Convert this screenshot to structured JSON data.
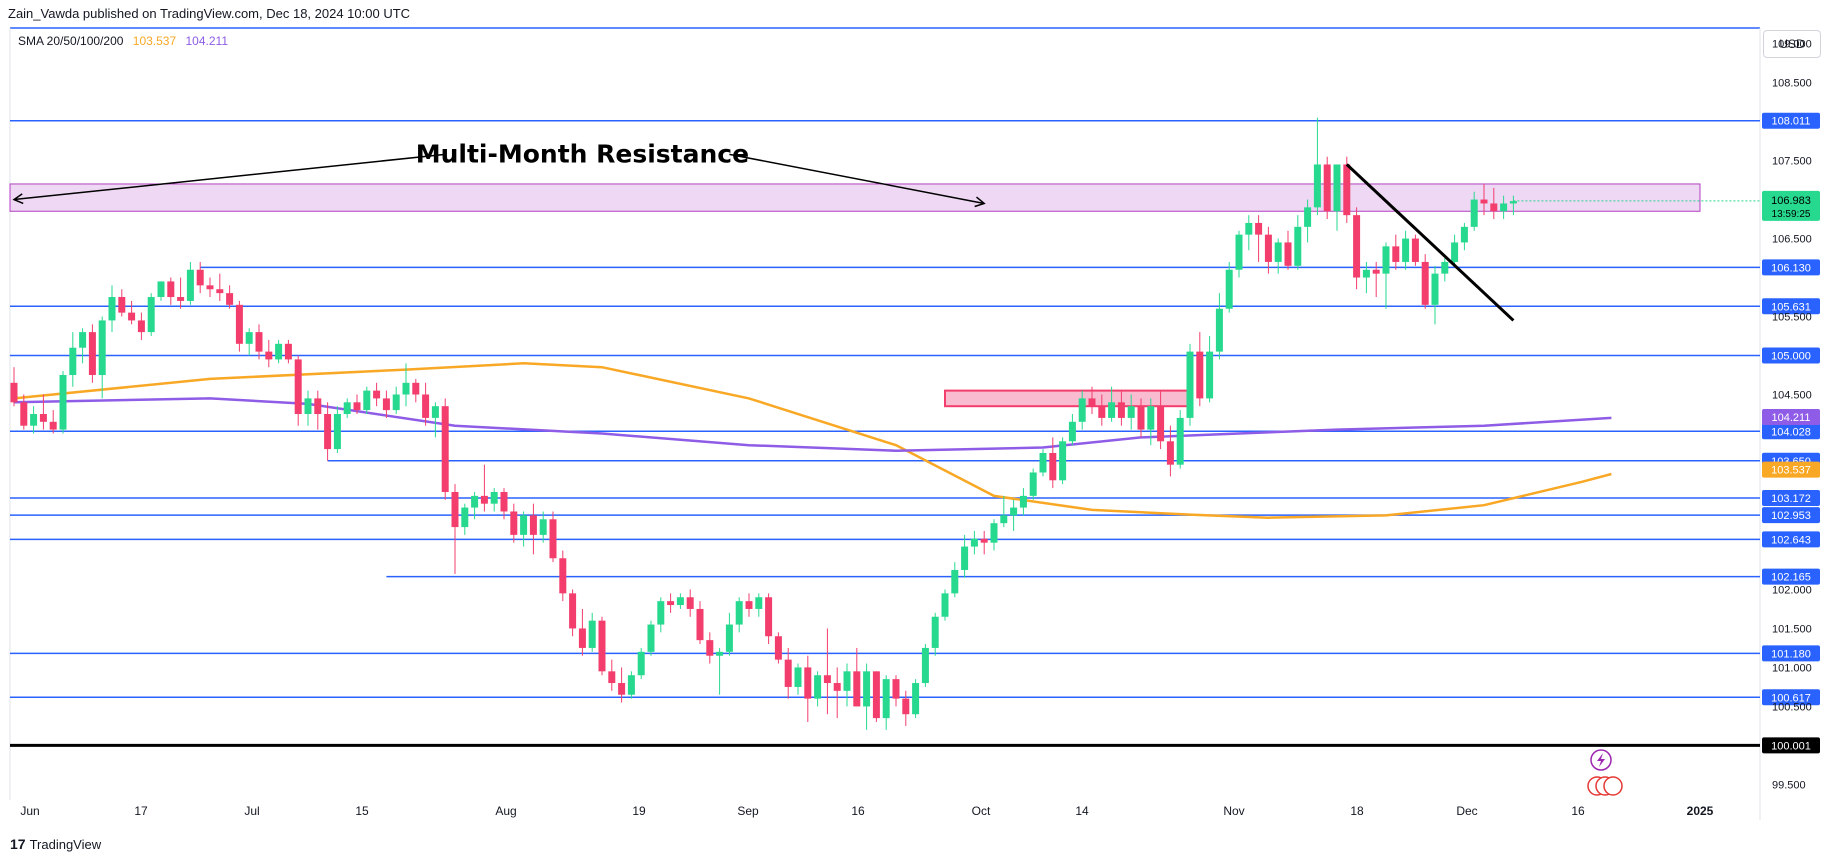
{
  "header": {
    "publisher": "Zain_Vawda published on TradingView.com, Dec 18, 2024 10:00 UTC"
  },
  "legend": {
    "label": "SMA 20/50/100/200",
    "sma1_value": "103.537",
    "sma2_value": "104.211"
  },
  "currency_label": "USD",
  "footer": {
    "brand": "TradingView"
  },
  "colors": {
    "up": "#26d98f",
    "down": "#f23d6d",
    "level": "#2962ff",
    "sma1": "#f9a825",
    "sma2": "#8e5ce6",
    "zone": "#e8c8f0",
    "zone_border": "#b040c0"
  },
  "chart_data": {
    "type": "candlestick",
    "annotation": "Multi-Month Resistance",
    "y_axis_ticks": [
      "109.000",
      "108.500",
      "107.500",
      "106.500",
      "105.500",
      "104.500",
      "102.000",
      "101.500",
      "101.000",
      "100.500",
      "99.500"
    ],
    "x_axis_ticks": [
      "Jun",
      "17",
      "Jul",
      "15",
      "Aug",
      "19",
      "Sep",
      "16",
      "Oct",
      "14",
      "Nov",
      "18",
      "Dec",
      "16",
      "2025"
    ],
    "ylim": [
      99.3,
      109.2
    ],
    "levels": [
      {
        "value": 108.011,
        "label": "108.011"
      },
      {
        "value": 106.13,
        "label": "106.130"
      },
      {
        "value": 105.631,
        "label": "105.631"
      },
      {
        "value": 105.0,
        "label": "105.000"
      },
      {
        "value": 104.028,
        "label": "104.028"
      },
      {
        "value": 103.65,
        "label": "103.650"
      },
      {
        "value": 103.172,
        "label": "103.172"
      },
      {
        "value": 102.953,
        "label": "102.953"
      },
      {
        "value": 102.643,
        "label": "102.643"
      },
      {
        "value": 102.165,
        "label": "102.165"
      },
      {
        "value": 101.18,
        "label": "101.180"
      },
      {
        "value": 100.617,
        "label": "100.617"
      },
      {
        "value": 100.001,
        "label": "100.001"
      }
    ],
    "sma_labels": [
      {
        "value": 104.211,
        "label": "104.211",
        "series": "sma2"
      },
      {
        "value": 103.537,
        "label": "103.537",
        "series": "sma1"
      }
    ],
    "last_price": {
      "value": 106.983,
      "label": "106.983",
      "countdown": "13:59:25"
    },
    "resistance_zone": [
      106.85,
      107.2
    ],
    "demand_zone": [
      104.35,
      104.55
    ],
    "candles": [
      [
        104.65,
        104.85,
        104.35,
        104.4
      ],
      [
        104.4,
        104.5,
        104.05,
        104.1
      ],
      [
        104.1,
        104.35,
        104.0,
        104.25
      ],
      [
        104.25,
        104.5,
        104.05,
        104.15
      ],
      [
        104.15,
        104.3,
        104.0,
        104.05
      ],
      [
        104.05,
        104.8,
        104.0,
        104.75
      ],
      [
        104.75,
        105.3,
        104.6,
        105.1
      ],
      [
        105.1,
        105.35,
        104.9,
        105.3
      ],
      [
        105.3,
        105.4,
        104.65,
        104.75
      ],
      [
        104.75,
        105.5,
        104.45,
        105.45
      ],
      [
        105.45,
        105.9,
        105.3,
        105.75
      ],
      [
        105.75,
        105.85,
        105.5,
        105.55
      ],
      [
        105.55,
        105.7,
        105.4,
        105.45
      ],
      [
        105.45,
        105.55,
        105.2,
        105.3
      ],
      [
        105.3,
        105.8,
        105.25,
        105.75
      ],
      [
        105.75,
        105.95,
        105.7,
        105.95
      ],
      [
        105.95,
        106.0,
        105.65,
        105.75
      ],
      [
        105.75,
        106.0,
        105.6,
        105.7
      ],
      [
        105.7,
        106.2,
        105.65,
        106.1
      ],
      [
        106.1,
        106.2,
        105.8,
        105.9
      ],
      [
        105.9,
        106.0,
        105.75,
        105.85
      ],
      [
        105.85,
        106.05,
        105.7,
        105.8
      ],
      [
        105.8,
        105.9,
        105.6,
        105.65
      ],
      [
        105.65,
        105.7,
        105.05,
        105.15
      ],
      [
        105.15,
        105.35,
        105.0,
        105.3
      ],
      [
        105.3,
        105.4,
        104.95,
        105.05
      ],
      [
        105.05,
        105.2,
        104.85,
        104.95
      ],
      [
        104.95,
        105.2,
        104.9,
        105.15
      ],
      [
        105.15,
        105.2,
        104.9,
        104.95
      ],
      [
        104.95,
        105.0,
        104.1,
        104.25
      ],
      [
        104.25,
        104.55,
        104.1,
        104.45
      ],
      [
        104.45,
        104.55,
        104.05,
        104.25
      ],
      [
        104.25,
        104.4,
        103.65,
        103.8
      ],
      [
        103.8,
        104.35,
        103.75,
        104.25
      ],
      [
        104.25,
        104.45,
        104.2,
        104.4
      ],
      [
        104.4,
        104.5,
        104.25,
        104.3
      ],
      [
        104.3,
        104.6,
        104.25,
        104.55
      ],
      [
        104.55,
        104.65,
        104.35,
        104.45
      ],
      [
        104.45,
        104.55,
        104.2,
        104.3
      ],
      [
        104.3,
        104.6,
        104.25,
        104.5
      ],
      [
        104.5,
        104.9,
        104.35,
        104.65
      ],
      [
        104.65,
        104.7,
        104.4,
        104.5
      ],
      [
        104.5,
        104.65,
        104.1,
        104.2
      ],
      [
        104.2,
        104.4,
        103.95,
        104.35
      ],
      [
        104.35,
        104.45,
        103.15,
        103.25
      ],
      [
        103.25,
        103.35,
        102.2,
        102.8
      ],
      [
        102.8,
        103.1,
        102.7,
        103.05
      ],
      [
        103.05,
        103.25,
        102.9,
        103.2
      ],
      [
        103.2,
        103.6,
        103.0,
        103.1
      ],
      [
        103.1,
        103.3,
        103.0,
        103.25
      ],
      [
        103.25,
        103.3,
        102.9,
        103.0
      ],
      [
        103.0,
        103.1,
        102.6,
        102.7
      ],
      [
        102.7,
        103.0,
        102.55,
        102.95
      ],
      [
        102.95,
        103.1,
        102.45,
        102.7
      ],
      [
        102.7,
        103.0,
        102.6,
        102.9
      ],
      [
        102.9,
        103.0,
        102.35,
        102.4
      ],
      [
        102.4,
        102.5,
        101.85,
        101.95
      ],
      [
        101.95,
        102.0,
        101.4,
        101.5
      ],
      [
        101.5,
        101.75,
        101.15,
        101.25
      ],
      [
        101.25,
        101.7,
        101.2,
        101.6
      ],
      [
        101.6,
        101.65,
        100.9,
        100.95
      ],
      [
        100.95,
        101.1,
        100.7,
        100.8
      ],
      [
        100.8,
        101.0,
        100.55,
        100.65
      ],
      [
        100.65,
        100.95,
        100.6,
        100.9
      ],
      [
        100.9,
        101.25,
        100.85,
        101.2
      ],
      [
        101.2,
        101.6,
        101.15,
        101.55
      ],
      [
        101.55,
        101.9,
        101.45,
        101.85
      ],
      [
        101.85,
        101.95,
        101.7,
        101.8
      ],
      [
        101.8,
        101.95,
        101.75,
        101.9
      ],
      [
        101.9,
        102.0,
        101.65,
        101.75
      ],
      [
        101.75,
        101.85,
        101.3,
        101.35
      ],
      [
        101.35,
        101.45,
        101.05,
        101.15
      ],
      [
        101.15,
        101.25,
        100.65,
        101.2
      ],
      [
        101.2,
        101.7,
        101.15,
        101.55
      ],
      [
        101.55,
        101.9,
        101.45,
        101.85
      ],
      [
        101.85,
        101.95,
        101.65,
        101.75
      ],
      [
        101.75,
        101.95,
        101.65,
        101.9
      ],
      [
        101.9,
        101.95,
        101.3,
        101.4
      ],
      [
        101.4,
        101.45,
        101.05,
        101.1
      ],
      [
        101.1,
        101.25,
        100.6,
        100.75
      ],
      [
        100.75,
        101.05,
        100.65,
        101.0
      ],
      [
        101.0,
        101.15,
        100.3,
        100.6
      ],
      [
        100.6,
        100.95,
        100.5,
        100.9
      ],
      [
        100.9,
        101.5,
        100.4,
        100.8
      ],
      [
        100.8,
        101.0,
        100.35,
        100.7
      ],
      [
        100.7,
        101.05,
        100.5,
        100.95
      ],
      [
        100.95,
        101.25,
        100.55,
        100.5
      ],
      [
        100.5,
        101.05,
        100.2,
        100.95
      ],
      [
        100.95,
        100.95,
        100.3,
        100.35
      ],
      [
        100.35,
        100.9,
        100.2,
        100.85
      ],
      [
        100.85,
        100.9,
        100.5,
        100.6
      ],
      [
        100.6,
        100.7,
        100.25,
        100.4
      ],
      [
        100.4,
        100.85,
        100.35,
        100.8
      ],
      [
        100.8,
        101.3,
        100.75,
        101.25
      ],
      [
        101.25,
        101.7,
        101.15,
        101.65
      ],
      [
        101.65,
        102.0,
        101.6,
        101.95
      ],
      [
        101.95,
        102.35,
        101.9,
        102.25
      ],
      [
        102.25,
        102.7,
        102.15,
        102.55
      ],
      [
        102.55,
        102.75,
        102.45,
        102.65
      ],
      [
        102.65,
        102.75,
        102.45,
        102.6
      ],
      [
        102.6,
        102.9,
        102.5,
        102.85
      ],
      [
        102.85,
        103.2,
        102.8,
        102.95
      ],
      [
        102.95,
        103.15,
        102.75,
        103.05
      ],
      [
        103.05,
        103.3,
        102.95,
        103.2
      ],
      [
        103.2,
        103.55,
        103.15,
        103.5
      ],
      [
        103.5,
        103.8,
        103.45,
        103.75
      ],
      [
        103.75,
        103.95,
        103.3,
        103.4
      ],
      [
        103.4,
        103.95,
        103.35,
        103.9
      ],
      [
        103.9,
        104.25,
        103.85,
        104.15
      ],
      [
        104.15,
        104.55,
        104.05,
        104.45
      ],
      [
        104.45,
        104.6,
        104.25,
        104.35
      ],
      [
        104.35,
        104.5,
        104.1,
        104.2
      ],
      [
        104.2,
        104.6,
        104.15,
        104.4
      ],
      [
        104.4,
        104.55,
        104.1,
        104.2
      ],
      [
        104.2,
        104.5,
        104.05,
        104.35
      ],
      [
        104.35,
        104.45,
        103.95,
        104.05
      ],
      [
        104.05,
        104.45,
        103.85,
        104.35
      ],
      [
        104.35,
        104.55,
        103.8,
        103.9
      ],
      [
        103.9,
        104.1,
        103.45,
        103.6
      ],
      [
        103.6,
        104.3,
        103.55,
        104.2
      ],
      [
        104.2,
        105.15,
        104.1,
        105.05
      ],
      [
        105.05,
        105.3,
        104.35,
        104.45
      ],
      [
        104.45,
        105.25,
        104.4,
        105.05
      ],
      [
        105.05,
        105.8,
        104.95,
        105.6
      ],
      [
        105.6,
        106.2,
        105.55,
        106.1
      ],
      [
        106.1,
        106.6,
        106.0,
        106.55
      ],
      [
        106.55,
        106.8,
        106.35,
        106.7
      ],
      [
        106.7,
        106.8,
        106.2,
        106.55
      ],
      [
        106.55,
        106.65,
        106.05,
        106.2
      ],
      [
        106.2,
        106.5,
        106.05,
        106.45
      ],
      [
        106.45,
        106.6,
        106.1,
        106.15
      ],
      [
        106.15,
        106.8,
        106.1,
        106.65
      ],
      [
        106.65,
        107.0,
        106.45,
        106.9
      ],
      [
        106.9,
        108.05,
        106.8,
        107.45
      ],
      [
        107.45,
        107.55,
        106.75,
        106.85
      ],
      [
        106.85,
        107.4,
        106.6,
        107.45
      ],
      [
        107.45,
        107.55,
        106.7,
        106.8
      ],
      [
        106.8,
        106.9,
        105.85,
        106.0
      ],
      [
        106.0,
        106.2,
        105.8,
        106.1
      ],
      [
        106.1,
        106.2,
        105.75,
        106.05
      ],
      [
        106.05,
        106.45,
        105.6,
        106.4
      ],
      [
        106.4,
        106.55,
        106.1,
        106.2
      ],
      [
        106.2,
        106.6,
        106.1,
        106.5
      ],
      [
        106.5,
        106.55,
        106.15,
        106.2
      ],
      [
        106.2,
        106.3,
        105.6,
        105.65
      ],
      [
        105.65,
        106.15,
        105.4,
        106.05
      ],
      [
        106.05,
        106.25,
        105.95,
        106.2
      ],
      [
        106.2,
        106.55,
        106.15,
        106.45
      ],
      [
        106.45,
        106.7,
        106.35,
        106.65
      ],
      [
        106.65,
        107.1,
        106.6,
        107.0
      ],
      [
        107.0,
        107.2,
        106.8,
        106.95
      ],
      [
        106.95,
        107.15,
        106.75,
        106.85
      ],
      [
        106.85,
        107.05,
        106.75,
        106.95
      ],
      [
        106.95,
        107.05,
        106.8,
        106.98
      ]
    ],
    "sma1": [
      [
        0,
        104.45
      ],
      [
        20,
        104.7
      ],
      [
        40,
        104.82
      ],
      [
        52,
        104.9
      ],
      [
        60,
        104.85
      ],
      [
        75,
        104.45
      ],
      [
        90,
        103.85
      ],
      [
        100,
        103.2
      ],
      [
        110,
        103.02
      ],
      [
        120,
        102.96
      ],
      [
        128,
        102.92
      ],
      [
        140,
        102.95
      ],
      [
        150,
        103.08
      ],
      [
        160,
        103.38
      ],
      [
        163,
        103.48
      ]
    ],
    "sma2": [
      [
        0,
        104.4
      ],
      [
        20,
        104.45
      ],
      [
        30,
        104.38
      ],
      [
        45,
        104.1
      ],
      [
        60,
        104.0
      ],
      [
        75,
        103.85
      ],
      [
        90,
        103.78
      ],
      [
        105,
        103.82
      ],
      [
        115,
        103.95
      ],
      [
        125,
        104.0
      ],
      [
        135,
        104.05
      ],
      [
        150,
        104.1
      ],
      [
        163,
        104.2
      ]
    ],
    "trendline": [
      [
        136,
        107.45
      ],
      [
        153,
        105.45
      ]
    ],
    "arrow_left": [
      [
        44,
        107.58
      ],
      [
        0,
        107.0
      ]
    ],
    "arrow_right": [
      [
        73,
        107.58
      ],
      [
        99,
        106.95
      ]
    ]
  }
}
